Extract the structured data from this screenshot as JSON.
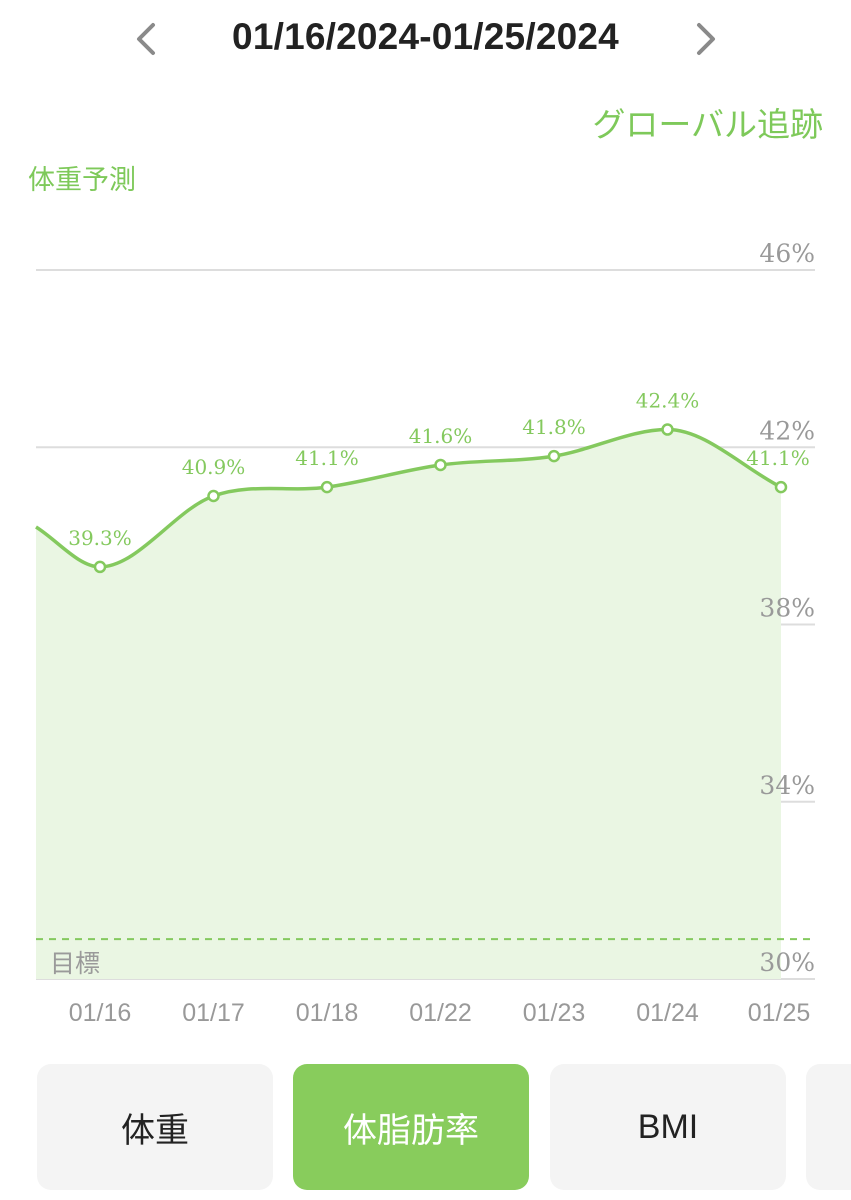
{
  "header": {
    "date_range": "01/16/2024-01/25/2024"
  },
  "global_tracking_label": "グローバル追跡",
  "section_label": "体重予測",
  "tabs": [
    {
      "label": "体重",
      "active": false
    },
    {
      "label": "体脂肪率",
      "active": true
    },
    {
      "label": "BMI",
      "active": false
    },
    {
      "label": "",
      "active": false
    }
  ],
  "colors": {
    "accent": "#7ec95a",
    "line": "#84c95e",
    "fill": "#eaf6e3",
    "grid": "#dddddd",
    "axis_text": "#999999"
  },
  "chart_data": {
    "type": "area",
    "categories": [
      "01/16",
      "01/17",
      "01/18",
      "01/22",
      "01/23",
      "01/24",
      "01/25"
    ],
    "values": [
      39.3,
      40.9,
      41.1,
      41.6,
      41.8,
      42.4,
      41.1
    ],
    "data_labels": [
      "39.3%",
      "40.9%",
      "41.1%",
      "41.6%",
      "41.8%",
      "42.4%",
      "41.1%"
    ],
    "y_ticks": [
      {
        "value": 46,
        "label": "46%"
      },
      {
        "value": 42,
        "label": "42%"
      },
      {
        "value": 38,
        "label": "38%"
      },
      {
        "value": 34,
        "label": "34%"
      },
      {
        "value": 30,
        "label": "30%"
      }
    ],
    "ylim": [
      30,
      46
    ],
    "start_value": 40.2,
    "goal_value": 30.9,
    "goal_label": "目標",
    "grid": true
  }
}
